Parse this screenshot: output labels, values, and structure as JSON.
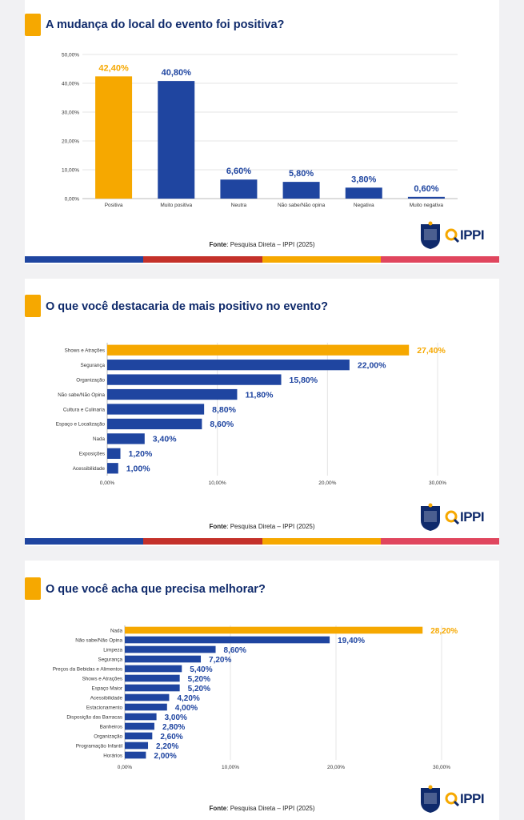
{
  "colors": {
    "highlight": "#f6a800",
    "bar": "#1f45a0",
    "label_highlight": "#f6a800",
    "label": "#1f45a0",
    "stripe": [
      "#1f45a0",
      "#c4312a",
      "#f6a800",
      "#e0465e"
    ]
  },
  "source": {
    "label": "Fonte",
    "text": ": Pesquisa Direta – IPPI (2025)"
  },
  "logo": {
    "text": "IPPI"
  },
  "chart_data": [
    {
      "type": "bar",
      "orientation": "vertical",
      "title": "A mudança do local do evento foi positiva?",
      "categories": [
        "Positiva",
        "Muito positiva",
        "Neutra",
        "Não sabe/Não opina",
        "Negativa",
        "Muito negativa"
      ],
      "values": [
        42.4,
        40.8,
        6.6,
        5.8,
        3.8,
        0.6
      ],
      "value_labels": [
        "42,40%",
        "40,80%",
        "6,60%",
        "5,80%",
        "3,80%",
        "0,60%"
      ],
      "highlight_index": 0,
      "ylim": [
        0,
        50
      ],
      "ticks": [
        0,
        10,
        20,
        30,
        40,
        50
      ],
      "tick_labels": [
        "0,00%",
        "10,00%",
        "20,00%",
        "30,00%",
        "40,00%",
        "50,00%"
      ],
      "grid": true
    },
    {
      "type": "bar",
      "orientation": "horizontal",
      "title": "O que você destacaria de mais positivo no evento?",
      "categories": [
        "Shows e Atrações",
        "Segurança",
        "Organização",
        "Não sabe/Não Opina",
        "Cultura e Culinaria",
        "Espaço e Localização",
        "Nada",
        "Exposições",
        "Acessibilidade"
      ],
      "values": [
        27.4,
        22.0,
        15.8,
        11.8,
        8.8,
        8.6,
        3.4,
        1.2,
        1.0
      ],
      "value_labels": [
        "27,40%",
        "22,00%",
        "15,80%",
        "11,80%",
        "8,80%",
        "8,60%",
        "3,40%",
        "1,20%",
        "1,00%"
      ],
      "highlight_index": 0,
      "xlim": [
        0,
        30
      ],
      "ticks": [
        0,
        10,
        20,
        30
      ],
      "tick_labels": [
        "0,00%",
        "10,00%",
        "20,00%",
        "30,00%"
      ],
      "grid": true
    },
    {
      "type": "bar",
      "orientation": "horizontal",
      "title": "O que você acha que precisa melhorar?",
      "categories": [
        "Nada",
        "Não sabe/Não Opina",
        "Limpeza",
        "Segurança",
        "Preços da Bebidas e Alimentos",
        "Shows e Atrações",
        "Espaço Maior",
        "Acessibilidade",
        "Estacionamento",
        "Disposição das Barracas",
        "Banheiros",
        "Organização",
        "Programação Infantil",
        "Horários"
      ],
      "values": [
        28.2,
        19.4,
        8.6,
        7.2,
        5.4,
        5.2,
        5.2,
        4.2,
        4.0,
        3.0,
        2.8,
        2.6,
        2.2,
        2.0
      ],
      "value_labels": [
        "28,20%",
        "19,40%",
        "8,60%",
        "7,20%",
        "5,40%",
        "5,20%",
        "5,20%",
        "4,20%",
        "4,00%",
        "3,00%",
        "2,80%",
        "2,60%",
        "2,20%",
        "2,00%"
      ],
      "highlight_index": 0,
      "xlim": [
        0,
        30
      ],
      "ticks": [
        0,
        10,
        20,
        30
      ],
      "tick_labels": [
        "0,00%",
        "10,00%",
        "20,00%",
        "30,00%"
      ],
      "grid": true
    }
  ]
}
